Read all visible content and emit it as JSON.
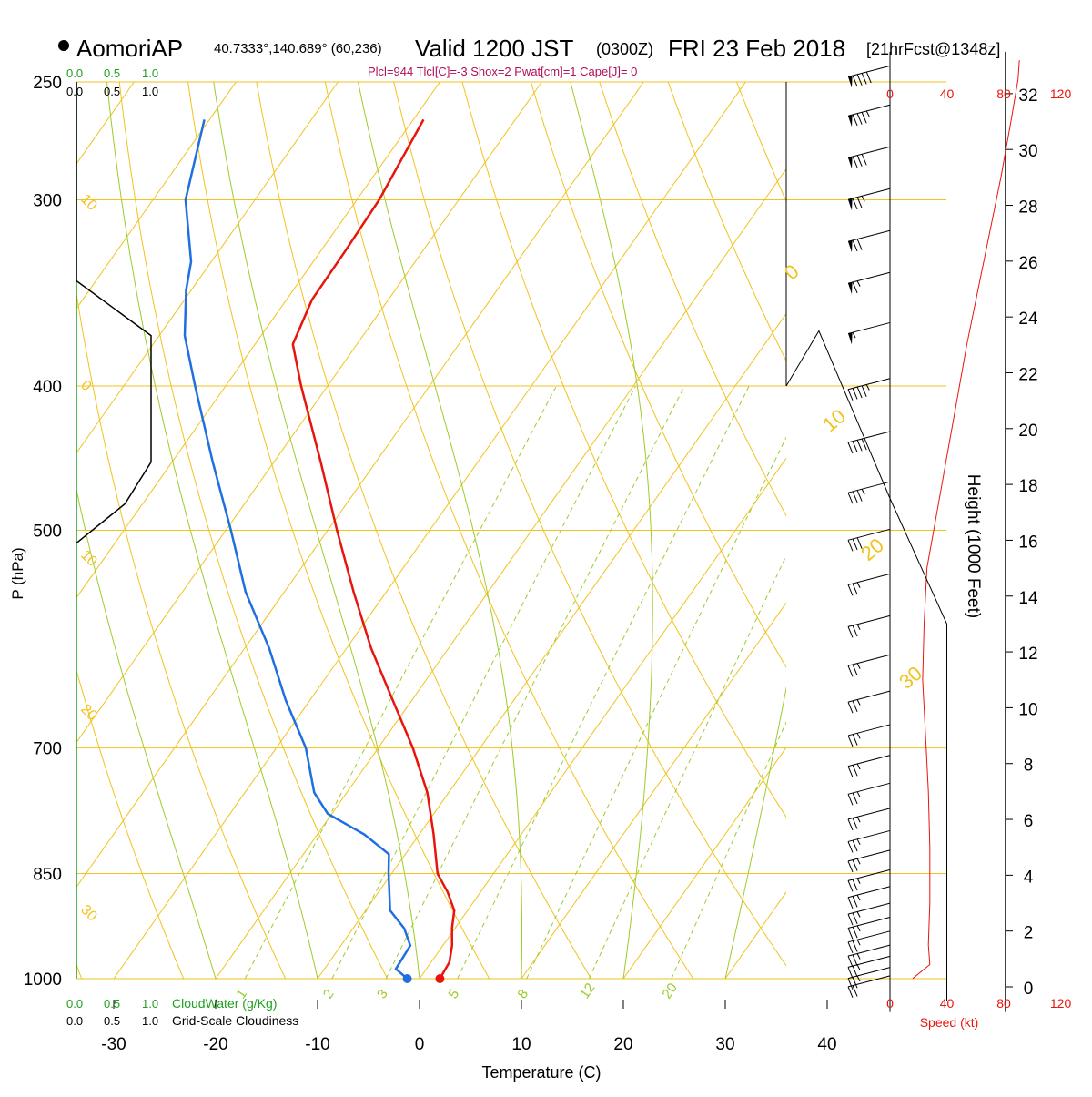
{
  "header": {
    "station": "AomoriAP",
    "coords": "40.7333°,140.689° (60,236)",
    "valid_main": "Valid 1200 JST",
    "valid_z": "(0300Z)",
    "date": "FRI 23 Feb 2018",
    "forecast": "[21hrFcst@1348z]",
    "indices": "Plcl=944 Tlcl[C]=-3 Shox=2 Pwat[cm]=1 Cape[J]= 0"
  },
  "colors": {
    "isotherm": "#f2c21d",
    "dry_adiabat": "#f2c21d",
    "moist_adiabat": "#9ccc2a",
    "mixing_ratio": "#9ccc2a",
    "temperature": "#e8150c",
    "dewpoint": "#1f6fe0",
    "cloud": "#000000",
    "speed": "#e8150c",
    "green_label": "#20a020",
    "indices": "#b0105a"
  },
  "chart_data": {
    "type": "line",
    "diagram": "skew-T log-p",
    "xlabel": "Temperature (C)",
    "ylabel": "P (hPa)",
    "xticks": [
      "-30",
      "-20",
      "-10",
      "0",
      "10",
      "20",
      "30",
      "40"
    ],
    "xtick_values": [
      -30,
      -20,
      -10,
      0,
      10,
      20,
      30,
      40
    ],
    "pressure_levels": [
      250,
      300,
      400,
      500,
      700,
      850,
      1000
    ],
    "pressure_labels": [
      "250",
      "300",
      "400",
      "500",
      "700",
      "850",
      "1000"
    ],
    "plim": [
      1000,
      250
    ],
    "temperature_profile": [
      {
        "p": 1000,
        "t": 2.0
      },
      {
        "p": 975,
        "t": 1.8
      },
      {
        "p": 950,
        "t": 0.9
      },
      {
        "p": 925,
        "t": -0.3
      },
      {
        "p": 900,
        "t": -1.3
      },
      {
        "p": 875,
        "t": -3.2
      },
      {
        "p": 850,
        "t": -5.5
      },
      {
        "p": 800,
        "t": -8.6
      },
      {
        "p": 750,
        "t": -12.1
      },
      {
        "p": 700,
        "t": -16.6
      },
      {
        "p": 650,
        "t": -21.9
      },
      {
        "p": 600,
        "t": -27.6
      },
      {
        "p": 550,
        "t": -33.2
      },
      {
        "p": 500,
        "t": -39.1
      },
      {
        "p": 450,
        "t": -45.4
      },
      {
        "p": 400,
        "t": -52.6
      },
      {
        "p": 375,
        "t": -56.3
      },
      {
        "p": 350,
        "t": -57.5
      },
      {
        "p": 325,
        "t": -57.6
      },
      {
        "p": 300,
        "t": -57.8
      },
      {
        "p": 265,
        "t": -59.0
      }
    ],
    "dewpoint_profile": [
      {
        "p": 1000,
        "td": -1.2
      },
      {
        "p": 985,
        "td": -3.0
      },
      {
        "p": 950,
        "td": -3.2
      },
      {
        "p": 925,
        "td": -5.0
      },
      {
        "p": 900,
        "td": -7.6
      },
      {
        "p": 850,
        "td": -10.3
      },
      {
        "p": 825,
        "td": -11.6
      },
      {
        "p": 800,
        "td": -15.4
      },
      {
        "p": 775,
        "td": -20.4
      },
      {
        "p": 750,
        "td": -23.2
      },
      {
        "p": 700,
        "td": -27.1
      },
      {
        "p": 650,
        "td": -32.4
      },
      {
        "p": 600,
        "td": -37.6
      },
      {
        "p": 550,
        "td": -43.8
      },
      {
        "p": 500,
        "td": -49.5
      },
      {
        "p": 450,
        "td": -56.0
      },
      {
        "p": 400,
        "td": -63.0
      },
      {
        "p": 370,
        "td": -67.5
      },
      {
        "p": 345,
        "td": -70.5
      },
      {
        "p": 330,
        "td": -72.0
      },
      {
        "p": 300,
        "td": -76.8
      },
      {
        "p": 265,
        "td": -80.5
      }
    ],
    "dry_adiabat_labels": [
      {
        "text": "10",
        "p": 300
      },
      {
        "text": "0",
        "p": 400
      },
      {
        "text": "10",
        "p": 520
      },
      {
        "text": "20",
        "p": 660
      },
      {
        "text": "30",
        "p": 900
      }
    ],
    "right_isotherm_labels": [
      {
        "text": "0",
        "p": 340
      },
      {
        "text": "10",
        "p": 430
      },
      {
        "text": "20",
        "p": 525
      },
      {
        "text": "30",
        "p": 640
      }
    ],
    "moist_adiabats_c": [
      -20,
      -10,
      0,
      10,
      20,
      30,
      40
    ],
    "mixing_ratio_lines": [
      {
        "w": 1,
        "label": "1"
      },
      {
        "w": 2,
        "label": "2"
      },
      {
        "w": 3,
        "label": "3"
      },
      {
        "w": 5,
        "label": "5"
      },
      {
        "w": 8,
        "label": "8"
      },
      {
        "w": 12,
        "label": "12"
      },
      {
        "w": 20,
        "label": "20"
      }
    ],
    "cloudwater_labels": [
      "0.0",
      "0.5",
      "1.0"
    ],
    "cloudwater_label": "CloudWater (g/Kg)",
    "cloudiness_labels": [
      "0.0",
      "0.5",
      "1.0"
    ],
    "cloudiness_label": "Grid-Scale Cloudiness",
    "cloudiness_profile": [
      {
        "p": 250,
        "c": 0
      },
      {
        "p": 340,
        "c": 0
      },
      {
        "p": 370,
        "c": 1.0
      },
      {
        "p": 450,
        "c": 1.0
      },
      {
        "p": 480,
        "c": 0.65
      },
      {
        "p": 510,
        "c": 0
      }
    ],
    "height_axis": {
      "label": "Height (1000 Feet)",
      "ticks": [
        "0",
        "2",
        "4",
        "6",
        "8",
        "10",
        "12",
        "14",
        "16",
        "18",
        "20",
        "22",
        "24",
        "26",
        "28",
        "30",
        "32"
      ],
      "tick_values_kft": [
        0,
        2,
        4,
        6,
        8,
        10,
        12,
        14,
        16,
        18,
        20,
        22,
        24,
        26,
        28,
        30,
        32
      ]
    },
    "speed_axis": {
      "label": "Speed (kt)",
      "ticks": [
        "0",
        "40",
        "80",
        "120"
      ],
      "tick_values": [
        0,
        40,
        80,
        120
      ]
    },
    "wind_speed_profile": [
      {
        "h": 0.3,
        "kt": 16
      },
      {
        "h": 0.8,
        "kt": 28
      },
      {
        "h": 1.5,
        "kt": 27
      },
      {
        "h": 3.0,
        "kt": 28
      },
      {
        "h": 5.0,
        "kt": 28
      },
      {
        "h": 7.0,
        "kt": 27
      },
      {
        "h": 9.0,
        "kt": 25
      },
      {
        "h": 11.0,
        "kt": 23
      },
      {
        "h": 13.0,
        "kt": 24
      },
      {
        "h": 15.0,
        "kt": 26
      },
      {
        "h": 17.0,
        "kt": 33
      },
      {
        "h": 19.0,
        "kt": 40
      },
      {
        "h": 21.0,
        "kt": 47
      },
      {
        "h": 23.0,
        "kt": 54
      },
      {
        "h": 25.0,
        "kt": 62
      },
      {
        "h": 27.0,
        "kt": 70
      },
      {
        "h": 29.0,
        "kt": 78
      },
      {
        "h": 31.0,
        "kt": 85
      },
      {
        "h": 32.5,
        "kt": 90
      },
      {
        "h": 33.2,
        "kt": 91
      }
    ],
    "tropopause_line": [
      {
        "h": 13.0,
        "kt": 40
      },
      {
        "h": 17.5,
        "kt": 0
      },
      {
        "h": 23.5,
        "kt": -50
      }
    ],
    "wind_barbs": [
      {
        "h": 0.2,
        "kt": 20
      },
      {
        "h": 0.5,
        "kt": 25
      },
      {
        "h": 0.9,
        "kt": 25
      },
      {
        "h": 1.3,
        "kt": 25
      },
      {
        "h": 1.8,
        "kt": 25
      },
      {
        "h": 2.3,
        "kt": 25
      },
      {
        "h": 2.8,
        "kt": 25
      },
      {
        "h": 3.4,
        "kt": 25
      },
      {
        "h": 4.0,
        "kt": 25
      },
      {
        "h": 4.7,
        "kt": 25
      },
      {
        "h": 5.4,
        "kt": 25
      },
      {
        "h": 6.2,
        "kt": 25
      },
      {
        "h": 7.1,
        "kt": 25
      },
      {
        "h": 8.1,
        "kt": 25
      },
      {
        "h": 9.2,
        "kt": 25
      },
      {
        "h": 10.4,
        "kt": 25
      },
      {
        "h": 11.7,
        "kt": 25
      },
      {
        "h": 13.1,
        "kt": 25
      },
      {
        "h": 14.6,
        "kt": 25
      },
      {
        "h": 16.2,
        "kt": 30
      },
      {
        "h": 17.9,
        "kt": 35
      },
      {
        "h": 19.7,
        "kt": 40
      },
      {
        "h": 21.6,
        "kt": 45
      },
      {
        "h": 23.6,
        "kt": 55
      },
      {
        "h": 25.4,
        "kt": 65
      },
      {
        "h": 26.9,
        "kt": 70
      },
      {
        "h": 28.4,
        "kt": 75
      },
      {
        "h": 29.9,
        "kt": 80
      },
      {
        "h": 31.4,
        "kt": 85
      },
      {
        "h": 32.8,
        "kt": 90
      }
    ]
  }
}
